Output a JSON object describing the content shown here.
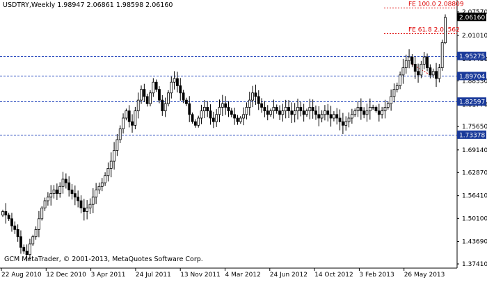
{
  "header": {
    "symbol_line": "USDTRY,Weekly  1.98947 2.06861 1.98598 2.06160"
  },
  "footer": {
    "copyright": "GCM MetaTrader, © 2001-2013, MetaQuotes Software Corp."
  },
  "colors": {
    "background": "#ffffff",
    "candle": "#000000",
    "level_line": "#2244bb",
    "fib_line": "#dd0000",
    "price_box": "#000000",
    "level_box": "#1a3a9a"
  },
  "chart_data": {
    "type": "candlestick",
    "symbol": "USDTRY",
    "timeframe": "Weekly",
    "ohlc_current": {
      "open": 1.98947,
      "high": 2.06861,
      "low": 1.98598,
      "close": 2.0616
    },
    "x_tick_labels": [
      "22 Aug 2010",
      "12 Dec 2010",
      "3 Apr 2011",
      "24 Jul 2011",
      "13 Nov 2011",
      "4 Mar 2012",
      "24 Jun 2012",
      "14 Oct 2012",
      "3 Feb 2013",
      "26 May 2013"
    ],
    "y_tick_labels": [
      "2.07570",
      "2.01010",
      "1.94450",
      "1.88330",
      "1.81770",
      "1.75650",
      "1.69140",
      "1.62870",
      "1.56410",
      "1.50100",
      "1.43690",
      "1.37410"
    ],
    "ylim": [
      1.3741,
      2.0757
    ],
    "horizontal_levels": [
      {
        "label": "1.95275",
        "value": 1.95275
      },
      {
        "label": "1.89704",
        "value": 1.89704
      },
      {
        "label": "1.82597",
        "value": 1.82597
      },
      {
        "label": "1.73378",
        "value": 1.73378
      }
    ],
    "current_price_label": "2.06160",
    "current_price": 2.0616,
    "fibo_levels": [
      {
        "label": "FE 100.0 2.08809",
        "value": 2.08809
      },
      {
        "label": "FE 61.8 2.01562",
        "value": 2.01562
      }
    ],
    "closes": [
      1.52,
      1.51,
      1.5,
      1.48,
      1.47,
      1.45,
      1.42,
      1.41,
      1.4,
      1.43,
      1.45,
      1.47,
      1.5,
      1.53,
      1.55,
      1.56,
      1.57,
      1.58,
      1.57,
      1.59,
      1.61,
      1.6,
      1.58,
      1.57,
      1.56,
      1.55,
      1.53,
      1.52,
      1.53,
      1.54,
      1.56,
      1.58,
      1.59,
      1.6,
      1.62,
      1.64,
      1.66,
      1.69,
      1.72,
      1.75,
      1.78,
      1.8,
      1.77,
      1.76,
      1.8,
      1.83,
      1.86,
      1.84,
      1.82,
      1.85,
      1.88,
      1.86,
      1.83,
      1.8,
      1.82,
      1.85,
      1.88,
      1.89,
      1.87,
      1.85,
      1.83,
      1.82,
      1.79,
      1.77,
      1.76,
      1.78,
      1.8,
      1.81,
      1.8,
      1.78,
      1.77,
      1.79,
      1.81,
      1.82,
      1.81,
      1.8,
      1.79,
      1.78,
      1.77,
      1.78,
      1.79,
      1.81,
      1.83,
      1.85,
      1.84,
      1.82,
      1.81,
      1.8,
      1.79,
      1.8,
      1.81,
      1.8,
      1.79,
      1.8,
      1.81,
      1.8,
      1.79,
      1.8,
      1.81,
      1.8,
      1.79,
      1.8,
      1.81,
      1.8,
      1.79,
      1.78,
      1.79,
      1.8,
      1.79,
      1.78,
      1.79,
      1.78,
      1.77,
      1.76,
      1.77,
      1.78,
      1.79,
      1.8,
      1.81,
      1.8,
      1.79,
      1.8,
      1.81,
      1.81,
      1.8,
      1.79,
      1.8,
      1.81,
      1.82,
      1.84,
      1.86,
      1.87,
      1.9,
      1.92,
      1.94,
      1.95,
      1.93,
      1.91,
      1.9,
      1.93,
      1.95,
      1.92,
      1.9,
      1.91,
      1.89,
      1.92,
      1.99,
      2.06
    ]
  }
}
